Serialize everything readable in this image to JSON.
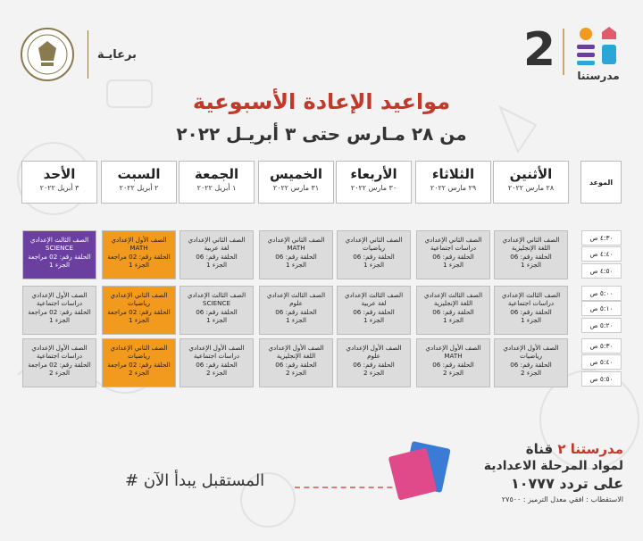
{
  "header": {
    "sponsor": "برعايـة",
    "brand_number": "2",
    "brand_name": "مدرستنا",
    "title": "مواعيد الإعادة الأسبوعية",
    "subtitle": "من ٢٨ مـارس حتى ٣ أبريـل ٢٠٢٢"
  },
  "table": {
    "time_label": "الموعد",
    "days": [
      {
        "day": "الأحد",
        "date": "٣ أبريل ٢٠٢٢"
      },
      {
        "day": "السبت",
        "date": "٢ أبريل ٢٠٢٢"
      },
      {
        "day": "الجمعة",
        "date": "١ أبريل ٢٠٢٢"
      },
      {
        "day": "الخميس",
        "date": "٣١ مارس ٢٠٢٢"
      },
      {
        "day": "الأربعاء",
        "date": "٣٠ مارس ٢٠٢٢"
      },
      {
        "day": "الثلاثاء",
        "date": "٢٩ مارس ٢٠٢٢"
      },
      {
        "day": "الأثنين",
        "date": "٢٨ مارس ٢٠٢٢"
      }
    ],
    "times": [
      "٤:٣٠ ص",
      "٤:٤٠ ص",
      "٤:٥٠ ص",
      "٥:٠٠ ص",
      "٥:١٠ ص",
      "٥:٢٠ ص",
      "٥:٣٠ ص",
      "٥:٤٠ ص",
      "٥:٥٠ ص"
    ],
    "rows": [
      [
        {
          "t": [
            "الصف الثالث الإعدادي",
            "SCIENCE",
            "الحلقة رقم: 02 مراجعة",
            "الجزء 1"
          ],
          "c": "purple"
        },
        {
          "t": [
            "الصف الأول الإعدادي",
            "MATH",
            "الحلقة رقم: 02 مراجعة",
            "الجزء 1"
          ],
          "c": "orange"
        },
        {
          "t": [
            "الصف الثاني الإعدادي",
            "لغة عربية",
            "الحلقة رقم: 06",
            "الجزء 1"
          ],
          "c": "gray"
        },
        {
          "t": [
            "الصف الثاني الإعدادي",
            "MATH",
            "الحلقة رقم: 06",
            "الجزء 1"
          ],
          "c": "gray"
        },
        {
          "t": [
            "الصف الثاني الإعدادي",
            "رياضيات",
            "الحلقة رقم: 06",
            "الجزء 1"
          ],
          "c": "gray"
        },
        {
          "t": [
            "الصف الثاني الإعدادي",
            "دراسات اجتماعية",
            "الحلقة رقم: 06",
            "الجزء 1"
          ],
          "c": "gray"
        },
        {
          "t": [
            "الصف الثاني الإعدادي",
            "اللغة الإنجليزية",
            "الحلقة رقم: 06",
            "الجزء 1"
          ],
          "c": "gray"
        }
      ],
      [
        {
          "t": [
            "الصف الأول الإعدادي",
            "دراسات اجتماعية",
            "الحلقة رقم: 02 مراجعة",
            "الجزء 1"
          ],
          "c": "gray"
        },
        {
          "t": [
            "الصف الثاني الإعدادي",
            "رياضيات",
            "الحلقة رقم: 02 مراجعة",
            "الجزء 1"
          ],
          "c": "orange"
        },
        {
          "t": [
            "الصف الثالث الإعدادي",
            "SCIENCE",
            "الحلقة رقم: 06",
            "الجزء 1"
          ],
          "c": "gray"
        },
        {
          "t": [
            "الصف الثالث الإعدادي",
            "علوم",
            "الحلقة رقم: 06",
            "الجزء 1"
          ],
          "c": "gray"
        },
        {
          "t": [
            "الصف الثالث الإعدادي",
            "لغة عربية",
            "الحلقة رقم: 06",
            "الجزء 1"
          ],
          "c": "gray"
        },
        {
          "t": [
            "الصف الثالث الإعدادي",
            "اللغة الإنجليزية",
            "الحلقة رقم: 06",
            "الجزء 1"
          ],
          "c": "gray"
        },
        {
          "t": [
            "الصف الثالث الإعدادي",
            "دراسات اجتماعية",
            "الحلقة رقم: 06",
            "الجزء 1"
          ],
          "c": "gray"
        }
      ],
      [
        {
          "t": [
            "الصف الأول الإعدادي",
            "دراسات اجتماعية",
            "الحلقة رقم: 02 مراجعة",
            "الجزء 2"
          ],
          "c": "gray"
        },
        {
          "t": [
            "الصف الثاني الإعدادي",
            "رياضيات",
            "الحلقة رقم: 02 مراجعة",
            "الجزء 2"
          ],
          "c": "orange"
        },
        {
          "t": [
            "الصف الأول الإعدادي",
            "دراسات اجتماعية",
            "الحلقة رقم: 06",
            "الجزء 2"
          ],
          "c": "gray"
        },
        {
          "t": [
            "الصف الأول الإعدادي",
            "اللغة الإنجليزية",
            "الحلقة رقم: 06",
            "الجزء 2"
          ],
          "c": "gray"
        },
        {
          "t": [
            "الصف الأول الإعدادي",
            "علوم",
            "الحلقة رقم: 06",
            "الجزء 2"
          ],
          "c": "gray"
        },
        {
          "t": [
            "الصف الأول الإعدادي",
            "MATH",
            "الحلقة رقم: 06",
            "الجزء 2"
          ],
          "c": "gray"
        },
        {
          "t": [
            "الصف الأول الإعدادي",
            "رياضيات",
            "الحلقة رقم: 06",
            "الجزء 2"
          ],
          "c": "gray"
        }
      ]
    ]
  },
  "footer": {
    "slogan": "# المستقبل يبدأ الآن",
    "channel_prefix": "قناة",
    "channel_name": "مدرستنا ٢",
    "channel_line2": "لمواد المرحلة الاعدادية",
    "channel_line3": "على تردد ١٠٧٧٧",
    "channel_line4": "الاستقطاب : افقي معدل الترميز : ٢٧٥٠٠"
  },
  "colors": {
    "purple": "#6a3fa0",
    "orange": "#f29a1d",
    "gray": "#dcdcdc",
    "accent": "#c0392b"
  }
}
